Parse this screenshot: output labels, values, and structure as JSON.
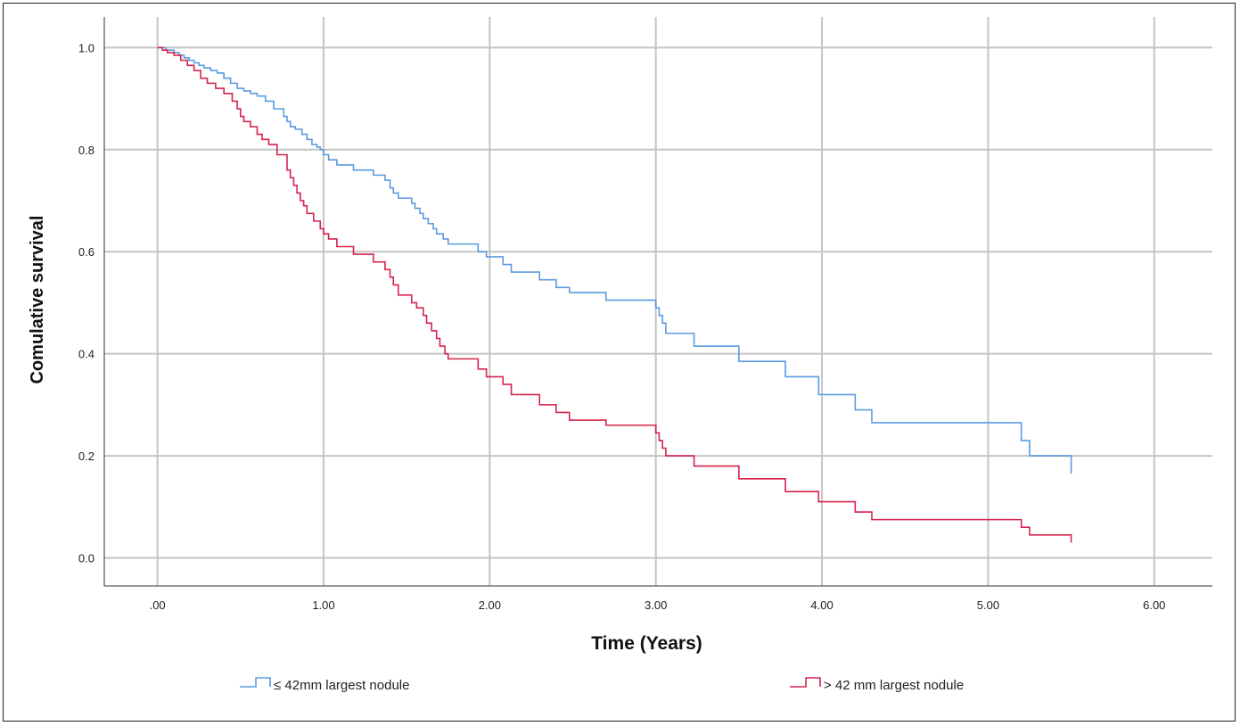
{
  "chart_data": {
    "type": "line",
    "xlabel": "Time (Years)",
    "ylabel": "Comulative survival",
    "xlim": [
      -0.32,
      6.35
    ],
    "ylim": [
      -0.055,
      1.06
    ],
    "x_ticks": [
      0,
      1,
      2,
      3,
      4,
      5,
      6
    ],
    "x_tick_labels": [
      ".00",
      "1.00",
      "2.00",
      "3.00",
      "4.00",
      "5.00",
      "6.00"
    ],
    "y_ticks": [
      0,
      0.2,
      0.4,
      0.6,
      0.8,
      1.0
    ],
    "y_tick_labels": [
      "0.0",
      "0.2",
      "0.4",
      "0.6",
      "0.8",
      "1.0"
    ],
    "grid": true,
    "legend_position": "bottom",
    "series": [
      {
        "name": "≤ 42mm largest nodule",
        "color": "#5b9be0",
        "step": true,
        "end_tick": [
          5.5,
          0.165
        ],
        "x": [
          0,
          0.05,
          0.1,
          0.13,
          0.16,
          0.19,
          0.22,
          0.25,
          0.28,
          0.32,
          0.36,
          0.4,
          0.44,
          0.48,
          0.52,
          0.56,
          0.6,
          0.65,
          0.7,
          0.76,
          0.78,
          0.8,
          0.83,
          0.87,
          0.9,
          0.93,
          0.96,
          0.98,
          1.0,
          1.03,
          1.08,
          1.18,
          1.3,
          1.37,
          1.4,
          1.42,
          1.45,
          1.53,
          1.55,
          1.58,
          1.6,
          1.63,
          1.66,
          1.68,
          1.72,
          1.75,
          1.93,
          1.98,
          2.08,
          2.13,
          2.3,
          2.4,
          2.48,
          2.7,
          3.0,
          3.02,
          3.04,
          3.06,
          3.23,
          3.5,
          3.78,
          3.98,
          4.2,
          4.3,
          5.2,
          5.25
        ],
        "y": [
          1.0,
          0.995,
          0.99,
          0.985,
          0.98,
          0.975,
          0.97,
          0.965,
          0.96,
          0.955,
          0.95,
          0.94,
          0.93,
          0.92,
          0.915,
          0.91,
          0.905,
          0.895,
          0.88,
          0.865,
          0.855,
          0.845,
          0.84,
          0.83,
          0.82,
          0.81,
          0.805,
          0.8,
          0.79,
          0.78,
          0.77,
          0.76,
          0.75,
          0.74,
          0.725,
          0.715,
          0.705,
          0.695,
          0.685,
          0.675,
          0.665,
          0.655,
          0.645,
          0.635,
          0.625,
          0.615,
          0.6,
          0.59,
          0.575,
          0.56,
          0.545,
          0.53,
          0.52,
          0.505,
          0.49,
          0.475,
          0.46,
          0.44,
          0.415,
          0.385,
          0.355,
          0.32,
          0.29,
          0.265,
          0.23,
          0.2
        ]
      },
      {
        "name": "> 42 mm largest nodule",
        "color": "#d6234d",
        "step": true,
        "end_tick": [
          5.5,
          0.03
        ],
        "x": [
          0,
          0.03,
          0.06,
          0.1,
          0.14,
          0.18,
          0.22,
          0.26,
          0.3,
          0.35,
          0.4,
          0.45,
          0.48,
          0.5,
          0.52,
          0.56,
          0.6,
          0.63,
          0.67,
          0.72,
          0.78,
          0.8,
          0.82,
          0.84,
          0.86,
          0.88,
          0.9,
          0.94,
          0.98,
          1.0,
          1.03,
          1.08,
          1.18,
          1.3,
          1.37,
          1.4,
          1.42,
          1.45,
          1.53,
          1.56,
          1.6,
          1.62,
          1.65,
          1.68,
          1.7,
          1.73,
          1.75,
          1.93,
          1.98,
          2.08,
          2.13,
          2.3,
          2.4,
          2.48,
          2.7,
          3.0,
          3.02,
          3.04,
          3.06,
          3.23,
          3.5,
          3.78,
          3.98,
          4.2,
          4.3,
          5.2,
          5.25
        ],
        "y": [
          1.0,
          0.995,
          0.99,
          0.985,
          0.975,
          0.965,
          0.955,
          0.94,
          0.93,
          0.92,
          0.91,
          0.895,
          0.88,
          0.865,
          0.855,
          0.845,
          0.83,
          0.82,
          0.81,
          0.79,
          0.76,
          0.745,
          0.73,
          0.715,
          0.7,
          0.69,
          0.675,
          0.66,
          0.645,
          0.635,
          0.625,
          0.61,
          0.595,
          0.58,
          0.565,
          0.55,
          0.535,
          0.515,
          0.5,
          0.49,
          0.475,
          0.46,
          0.445,
          0.43,
          0.415,
          0.4,
          0.39,
          0.37,
          0.355,
          0.34,
          0.32,
          0.3,
          0.285,
          0.27,
          0.26,
          0.245,
          0.23,
          0.215,
          0.2,
          0.18,
          0.155,
          0.13,
          0.11,
          0.09,
          0.075,
          0.06,
          0.045
        ]
      }
    ]
  }
}
